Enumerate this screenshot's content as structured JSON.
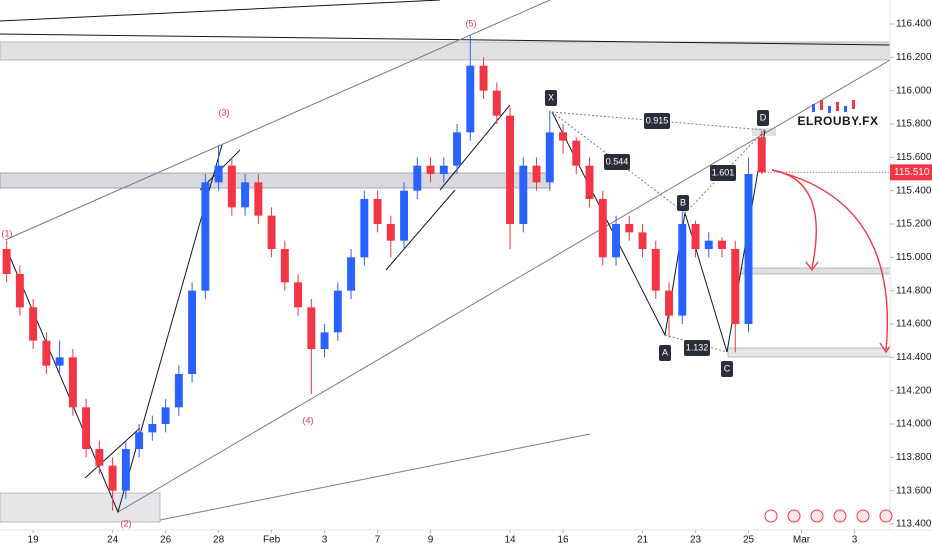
{
  "chart_data": {
    "type": "candlestick",
    "brand": "ELROUBY.FX",
    "up_color": "#2962ff",
    "down_color": "#f23645",
    "x": [
      -1,
      -0.5,
      0,
      0.5,
      1,
      1.5,
      2,
      2.5,
      3,
      3.5,
      4,
      4.5,
      5,
      5.5,
      6,
      6.5,
      7,
      7.5,
      8,
      8.5,
      9,
      9.5,
      10,
      10.5,
      11,
      11.5,
      12,
      12.5,
      13,
      13.5,
      14,
      14.5,
      15,
      15.5,
      16,
      16.5,
      17,
      17.5,
      18,
      18.5,
      19,
      19.5,
      20,
      20.5,
      21,
      21.5,
      22,
      22.5,
      23,
      23.5,
      24,
      24.5,
      25,
      25.5,
      26,
      26.5,
      27,
      27.5
    ],
    "open": [
      115.05,
      114.9,
      114.7,
      114.5,
      114.35,
      114.4,
      114.1,
      113.85,
      113.75,
      113.6,
      113.85,
      113.95,
      114.0,
      114.1,
      114.3,
      114.8,
      115.45,
      115.55,
      115.3,
      115.45,
      115.25,
      115.05,
      114.85,
      114.7,
      114.45,
      114.55,
      114.8,
      115.0,
      115.35,
      115.2,
      115.1,
      115.4,
      115.55,
      115.5,
      115.55,
      115.75,
      116.15,
      116.0,
      115.85,
      115.2,
      115.55,
      115.45,
      115.75,
      115.7,
      115.55,
      115.35,
      115.0,
      115.2,
      115.15,
      115.05,
      114.8,
      114.65,
      115.2,
      115.05,
      115.1,
      115.05,
      114.6,
      115.72
    ],
    "high": [
      115.1,
      114.95,
      114.75,
      114.55,
      114.5,
      114.45,
      114.15,
      113.9,
      113.8,
      113.9,
      114.0,
      114.05,
      114.15,
      114.35,
      114.85,
      115.5,
      115.67,
      115.6,
      115.5,
      115.5,
      115.3,
      115.1,
      114.9,
      114.75,
      114.6,
      114.85,
      115.05,
      115.4,
      115.4,
      115.25,
      115.45,
      115.6,
      115.6,
      115.6,
      115.8,
      116.33,
      116.2,
      116.05,
      115.9,
      115.6,
      115.6,
      115.88,
      115.8,
      115.72,
      115.6,
      115.4,
      115.25,
      115.25,
      115.2,
      115.1,
      114.85,
      115.27,
      115.22,
      115.15,
      115.12,
      115.1,
      115.6,
      115.76
    ],
    "low": [
      114.85,
      114.65,
      114.45,
      114.3,
      114.3,
      114.05,
      113.8,
      113.7,
      113.48,
      113.55,
      113.8,
      113.9,
      113.95,
      114.05,
      114.25,
      114.75,
      115.4,
      115.25,
      115.25,
      115.2,
      115.0,
      114.8,
      114.65,
      114.18,
      114.4,
      114.5,
      114.75,
      114.95,
      115.15,
      115.0,
      115.05,
      115.35,
      115.45,
      115.45,
      115.5,
      115.7,
      115.95,
      115.8,
      115.05,
      115.15,
      115.4,
      115.4,
      115.62,
      115.5,
      115.3,
      114.95,
      114.95,
      115.1,
      115.0,
      114.75,
      114.52,
      114.6,
      115.0,
      115.0,
      115.0,
      114.43,
      114.55,
      115.5
    ],
    "close": [
      114.9,
      114.7,
      114.5,
      114.35,
      114.4,
      114.1,
      113.85,
      113.75,
      113.6,
      113.85,
      113.95,
      114.0,
      114.1,
      114.3,
      114.8,
      115.45,
      115.55,
      115.3,
      115.45,
      115.25,
      115.05,
      114.85,
      114.7,
      114.45,
      114.55,
      114.8,
      115.0,
      115.35,
      115.2,
      115.1,
      115.4,
      115.55,
      115.5,
      115.55,
      115.75,
      116.15,
      116.0,
      115.85,
      115.2,
      115.55,
      115.45,
      115.75,
      115.7,
      115.55,
      115.35,
      115.0,
      115.2,
      115.15,
      115.05,
      114.8,
      114.65,
      115.2,
      115.05,
      115.1,
      115.05,
      114.6,
      115.5,
      115.51
    ],
    "last_price": {
      "value": 115.51,
      "label": "115.510"
    },
    "xlim": [
      -1.25,
      32.34
    ],
    "xticks": [
      {
        "value": 0,
        "label": "19"
      },
      {
        "value": 3,
        "label": "24"
      },
      {
        "value": 5,
        "label": "26"
      },
      {
        "value": 7,
        "label": "28"
      },
      {
        "value": 9,
        "label": "Feb"
      },
      {
        "value": 11,
        "label": "3"
      },
      {
        "value": 13,
        "label": "7"
      },
      {
        "value": 15,
        "label": "9"
      },
      {
        "value": 18,
        "label": "14"
      },
      {
        "value": 20,
        "label": "16"
      },
      {
        "value": 23,
        "label": "21"
      },
      {
        "value": 25,
        "label": "23"
      },
      {
        "value": 27,
        "label": "25"
      },
      {
        "value": 29,
        "label": "Mar"
      },
      {
        "value": 31,
        "label": "3"
      }
    ],
    "ylim": [
      113.4,
      116.4
    ],
    "yticks": [
      {
        "value": 113.4,
        "label": "113.400"
      },
      {
        "value": 113.6,
        "label": "113.600"
      },
      {
        "value": 113.8,
        "label": "113.800"
      },
      {
        "value": 114.0,
        "label": "114.000"
      },
      {
        "value": 114.2,
        "label": "114.200"
      },
      {
        "value": 114.4,
        "label": "114.400"
      },
      {
        "value": 114.6,
        "label": "114.600"
      },
      {
        "value": 114.8,
        "label": "114.800"
      },
      {
        "value": 115.0,
        "label": "115.000"
      },
      {
        "value": 115.2,
        "label": "115.200"
      },
      {
        "value": 115.4,
        "label": "115.400"
      },
      {
        "value": 115.6,
        "label": "115.600"
      },
      {
        "value": 115.8,
        "label": "115.800"
      },
      {
        "value": 116.0,
        "label": "116.000"
      },
      {
        "value": 116.2,
        "label": "116.200"
      },
      {
        "value": 116.4,
        "label": "116.400"
      }
    ],
    "annotations": [
      "(1)",
      "(2)",
      "(3)",
      "(4)",
      "(5)",
      "X",
      "A",
      "B",
      "C",
      "D",
      "0.915",
      "0.544",
      "1.601",
      "1.132"
    ]
  }
}
